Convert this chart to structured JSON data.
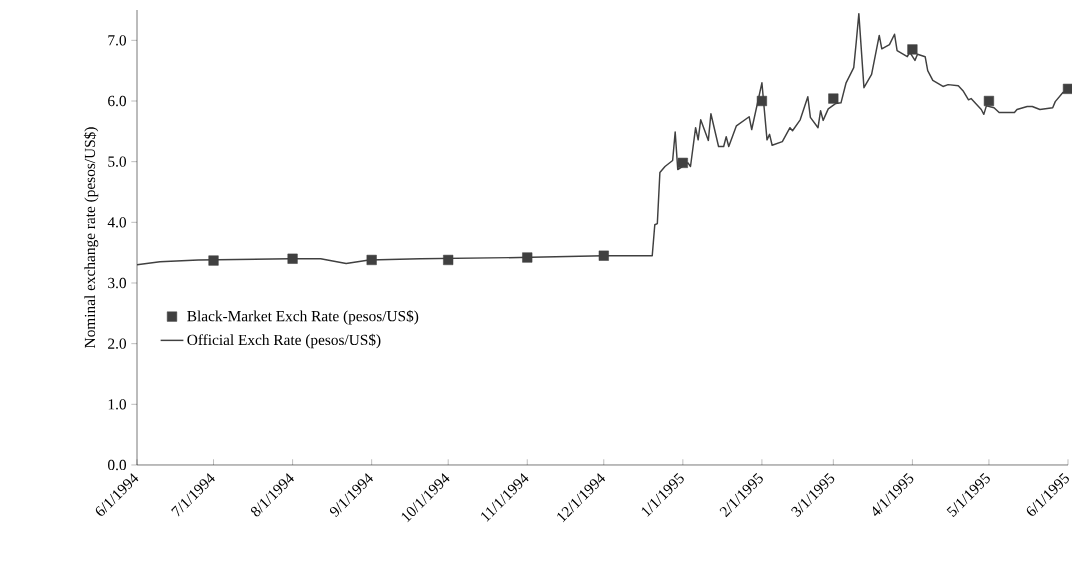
{
  "chart_data": {
    "type": "line",
    "ylabel": "Nominal exchange rate (pesos/US$)",
    "series": [
      {
        "name": "Black-Market Exch Rate (pesos/US$)",
        "type": "scatter",
        "marker": "square",
        "color": "#404040",
        "x": [
          "1994-07-01",
          "1994-08-01",
          "1994-09-01",
          "1994-10-01",
          "1994-11-01",
          "1994-12-01",
          "1995-01-01",
          "1995-02-01",
          "1995-03-01",
          "1995-04-01",
          "1995-05-01",
          "1995-06-01"
        ],
        "values": [
          3.37,
          3.4,
          3.38,
          3.38,
          3.42,
          3.45,
          4.98,
          6.0,
          6.04,
          6.85,
          6.0,
          6.2
        ]
      },
      {
        "name": "Official Exch Rate (pesos/US$)",
        "marker": "none",
        "line_style": "solid",
        "color": "#404040",
        "x": [
          "1994-06-01",
          "1994-06-10",
          "1994-06-25",
          "1994-07-31",
          "1994-08-12",
          "1994-08-22",
          "1994-08-31",
          "1994-09-20",
          "1994-10-29",
          "1994-12-01",
          "1994-12-20",
          "1994-12-21",
          "1994-12-22",
          "1994-12-23",
          "1994-12-25",
          "1994-12-28",
          "1994-12-29",
          "1994-12-30",
          "1995-01-03",
          "1995-01-04",
          "1995-01-06",
          "1995-01-07",
          "1995-01-08",
          "1995-01-11",
          "1995-01-12",
          "1995-01-15",
          "1995-01-17",
          "1995-01-18",
          "1995-01-19",
          "1995-01-22",
          "1995-01-27",
          "1995-01-28",
          "1995-02-01",
          "1995-02-03",
          "1995-02-04",
          "1995-02-05",
          "1995-02-09",
          "1995-02-12",
          "1995-02-13",
          "1995-02-16",
          "1995-02-19",
          "1995-02-20",
          "1995-02-23",
          "1995-02-24",
          "1995-02-25",
          "1995-02-27",
          "1995-03-02",
          "1995-03-04",
          "1995-03-06",
          "1995-03-09",
          "1995-03-10",
          "1995-03-11",
          "1995-03-13",
          "1995-03-16",
          "1995-03-19",
          "1995-03-20",
          "1995-03-23",
          "1995-03-25",
          "1995-03-26",
          "1995-03-30",
          "1995-03-31",
          "1995-04-02",
          "1995-04-03",
          "1995-04-06",
          "1995-04-07",
          "1995-04-09",
          "1995-04-13",
          "1995-04-15",
          "1995-04-19",
          "1995-04-21",
          "1995-04-23",
          "1995-04-24",
          "1995-04-28",
          "1995-04-29",
          "1995-04-30",
          "1995-05-03",
          "1995-05-05",
          "1995-05-07",
          "1995-05-11",
          "1995-05-12",
          "1995-05-16",
          "1995-05-18",
          "1995-05-21",
          "1995-05-26",
          "1995-05-27",
          "1995-05-30",
          "1995-06-01"
        ],
        "values": [
          3.3,
          3.35,
          3.38,
          3.4,
          3.4,
          3.32,
          3.38,
          3.4,
          3.42,
          3.45,
          3.45,
          3.96,
          3.98,
          4.82,
          4.92,
          5.02,
          5.49,
          4.87,
          4.98,
          4.92,
          5.56,
          5.36,
          5.69,
          5.35,
          5.79,
          5.25,
          5.25,
          5.41,
          5.25,
          5.59,
          5.74,
          5.53,
          6.3,
          5.36,
          5.45,
          5.27,
          5.33,
          5.56,
          5.51,
          5.69,
          6.07,
          5.73,
          5.56,
          5.84,
          5.68,
          5.87,
          5.96,
          5.97,
          6.3,
          6.55,
          6.98,
          7.44,
          6.22,
          6.44,
          7.08,
          6.86,
          6.93,
          7.1,
          6.83,
          6.73,
          6.8,
          6.67,
          6.77,
          6.73,
          6.5,
          6.34,
          6.24,
          6.27,
          6.25,
          6.16,
          6.02,
          6.04,
          5.86,
          5.78,
          5.92,
          5.89,
          5.81,
          5.81,
          5.81,
          5.86,
          5.91,
          5.91,
          5.86,
          5.89,
          5.99,
          6.14,
          6.16
        ]
      }
    ],
    "xlim": [
      "1994-06-01",
      "1995-06-01"
    ],
    "xticks": [
      {
        "value": "1994-06-01",
        "label": "6/1/1994"
      },
      {
        "value": "1994-07-01",
        "label": "7/1/1994"
      },
      {
        "value": "1994-08-01",
        "label": "8/1/1994"
      },
      {
        "value": "1994-09-01",
        "label": "9/1/1994"
      },
      {
        "value": "1994-10-01",
        "label": "10/1/1994"
      },
      {
        "value": "1994-11-01",
        "label": "11/1/1994"
      },
      {
        "value": "1994-12-01",
        "label": "12/1/1994"
      },
      {
        "value": "1995-01-01",
        "label": "1/1/1995"
      },
      {
        "value": "1995-02-01",
        "label": "2/1/1995"
      },
      {
        "value": "1995-03-01",
        "label": "3/1/1995"
      },
      {
        "value": "1995-04-01",
        "label": "4/1/1995"
      },
      {
        "value": "1995-05-01",
        "label": "5/1/1995"
      },
      {
        "value": "1995-06-01",
        "label": "6/1/1995"
      }
    ],
    "ylim": [
      0,
      7.5
    ],
    "yticks": [
      {
        "value": 0,
        "label": "0.0"
      },
      {
        "value": 1,
        "label": "1.0"
      },
      {
        "value": 2,
        "label": "2.0"
      },
      {
        "value": 3,
        "label": "3.0"
      },
      {
        "value": 4,
        "label": "4.0"
      },
      {
        "value": 5,
        "label": "5.0"
      },
      {
        "value": 6,
        "label": "6.0"
      },
      {
        "value": 7,
        "label": "7.0"
      }
    ],
    "grid": false,
    "legend": "left"
  }
}
